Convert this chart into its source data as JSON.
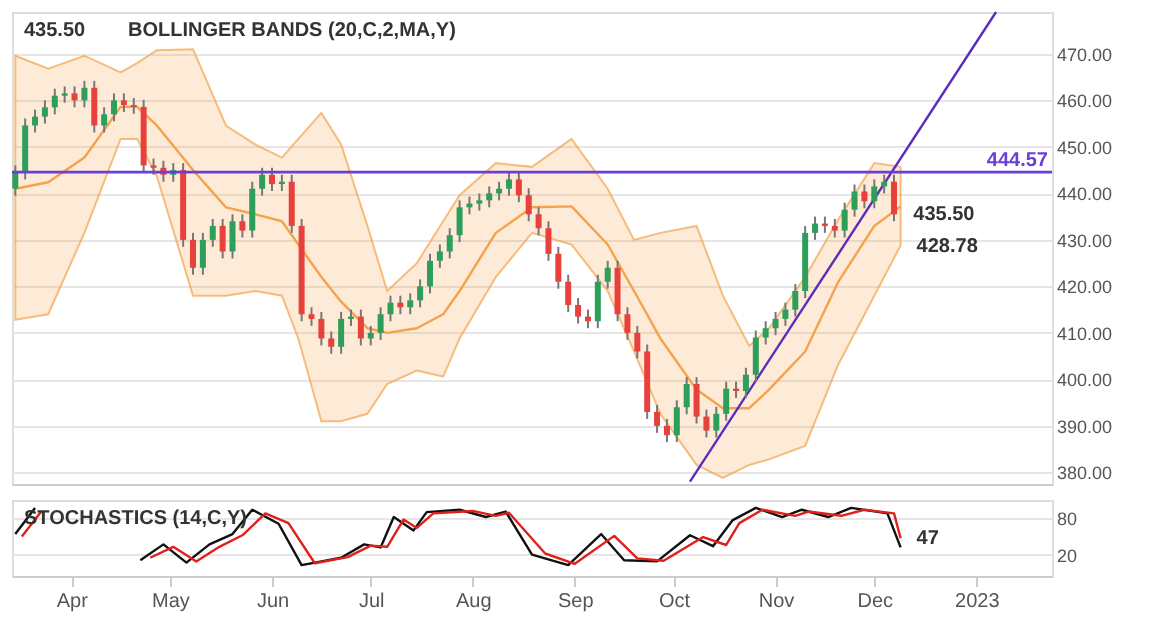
{
  "chart_data": [
    {
      "type": "candlestick",
      "annotations": [
        "435.50",
        "BOLLINGER BANDS (20,C,2,MA,Y)",
        {
          "text": "435.50",
          "x": "2022-12-08",
          "y": 435.5
        },
        {
          "text": "428.78",
          "x": "2022-12-09",
          "y": 428.78
        }
      ],
      "x": [
        "2022-03-15",
        "2022-03-18",
        "2022-03-21",
        "2022-03-24",
        "2022-03-27",
        "2022-03-30",
        "2022-04-02",
        "2022-04-05",
        "2022-04-08",
        "2022-04-11",
        "2022-04-14",
        "2022-04-17",
        "2022-04-20",
        "2022-04-23",
        "2022-04-26",
        "2022-04-29",
        "2022-05-02",
        "2022-05-05",
        "2022-05-08",
        "2022-05-11",
        "2022-05-14",
        "2022-05-17",
        "2022-05-20",
        "2022-05-23",
        "2022-05-26",
        "2022-05-29",
        "2022-06-01",
        "2022-06-04",
        "2022-06-07",
        "2022-06-10",
        "2022-06-13",
        "2022-06-16",
        "2022-06-19",
        "2022-06-22",
        "2022-06-25",
        "2022-06-28",
        "2022-07-01",
        "2022-07-04",
        "2022-07-07",
        "2022-07-10",
        "2022-07-13",
        "2022-07-16",
        "2022-07-19",
        "2022-07-22",
        "2022-07-25",
        "2022-07-28",
        "2022-07-31",
        "2022-08-03",
        "2022-08-06",
        "2022-08-09",
        "2022-08-12",
        "2022-08-15",
        "2022-08-18",
        "2022-08-21",
        "2022-08-24",
        "2022-08-27",
        "2022-08-30",
        "2022-09-02",
        "2022-09-05",
        "2022-09-08",
        "2022-09-11",
        "2022-09-14",
        "2022-09-17",
        "2022-09-20",
        "2022-09-23",
        "2022-09-26",
        "2022-09-29",
        "2022-10-02",
        "2022-10-05",
        "2022-10-08",
        "2022-10-11",
        "2022-10-14",
        "2022-10-17",
        "2022-10-20",
        "2022-10-23",
        "2022-10-26",
        "2022-10-29",
        "2022-11-01",
        "2022-11-04",
        "2022-11-07",
        "2022-11-10",
        "2022-11-13",
        "2022-11-16",
        "2022-11-19",
        "2022-11-22",
        "2022-11-25",
        "2022-11-28",
        "2022-12-01",
        "2022-12-04",
        "2022-12-07"
      ],
      "ohlc": [
        [
          441,
          446,
          439.5,
          444.5
        ],
        [
          444.5,
          456.1,
          443,
          454.6
        ],
        [
          454.6,
          458,
          453.1,
          456.5
        ],
        [
          456.5,
          460,
          455,
          458.5
        ],
        [
          458.5,
          462.5,
          457,
          461
        ],
        [
          461,
          463,
          459.5,
          461.5
        ],
        [
          461.5,
          463,
          458.5,
          460
        ],
        [
          460,
          464.2,
          458.5,
          462.7
        ],
        [
          462.7,
          464.2,
          453.1,
          454.6
        ],
        [
          454.6,
          458.5,
          453.1,
          457
        ],
        [
          457,
          461.5,
          455.5,
          460
        ],
        [
          460,
          461.5,
          457.5,
          459
        ],
        [
          459,
          460.5,
          457.1,
          458.6
        ],
        [
          458.6,
          460.1,
          444.5,
          446
        ],
        [
          446,
          447.5,
          444,
          445.5
        ],
        [
          445.5,
          447,
          442.5,
          444
        ],
        [
          444,
          446.5,
          442.5,
          445
        ],
        [
          445,
          446.5,
          428.5,
          430
        ],
        [
          430,
          431.5,
          422.5,
          424
        ],
        [
          424,
          431.5,
          422.5,
          430
        ],
        [
          430,
          434.5,
          428.5,
          433
        ],
        [
          433,
          434.5,
          426,
          427.5
        ],
        [
          427.5,
          435.5,
          426,
          434
        ],
        [
          434,
          435.5,
          430.5,
          432
        ],
        [
          432,
          442.5,
          430.5,
          441
        ],
        [
          441,
          445.5,
          439.5,
          444
        ],
        [
          444,
          445.5,
          440.5,
          442
        ],
        [
          442,
          444,
          440.5,
          442.5
        ],
        [
          442.5,
          444,
          431.5,
          433
        ],
        [
          433,
          434.5,
          412.5,
          414
        ],
        [
          414,
          415.5,
          411.5,
          413
        ],
        [
          413,
          414.5,
          407.3,
          408.8
        ],
        [
          408.8,
          410.3,
          405.5,
          407
        ],
        [
          407,
          414.5,
          405.5,
          413
        ],
        [
          413,
          415,
          411.5,
          413.5
        ],
        [
          413.5,
          415,
          407.3,
          408.8
        ],
        [
          408.8,
          411.5,
          407.3,
          410
        ],
        [
          410,
          415.5,
          408.5,
          414
        ],
        [
          414,
          418,
          412.5,
          416.5
        ],
        [
          416.5,
          418,
          414,
          415.5
        ],
        [
          415.5,
          418.5,
          414,
          417
        ],
        [
          417,
          421.5,
          415.5,
          420
        ],
        [
          420,
          427,
          418.5,
          425.5
        ],
        [
          425.5,
          429,
          424,
          427.5
        ],
        [
          427.5,
          432.5,
          426,
          431
        ],
        [
          431,
          438.5,
          429.5,
          437
        ],
        [
          437,
          439.3,
          435.5,
          437.8
        ],
        [
          437.8,
          440,
          436.3,
          438.5
        ],
        [
          438.5,
          441.5,
          437,
          440
        ],
        [
          440,
          442.5,
          438.5,
          441
        ],
        [
          441,
          444.5,
          439.5,
          443
        ],
        [
          443,
          444.5,
          438.1,
          439.6
        ],
        [
          439.6,
          441.1,
          434,
          435.5
        ],
        [
          435.5,
          437,
          431,
          432.5
        ],
        [
          432.5,
          434,
          425.5,
          427
        ],
        [
          427,
          428.5,
          419.5,
          421
        ],
        [
          421,
          422.5,
          414.5,
          416
        ],
        [
          416,
          417.5,
          412,
          413.5
        ],
        [
          413.5,
          415,
          411,
          412.5
        ],
        [
          412.5,
          422.5,
          411,
          421
        ],
        [
          421,
          425.5,
          419.5,
          424
        ],
        [
          424,
          425.5,
          412.5,
          414
        ],
        [
          414,
          415.5,
          408.5,
          410
        ],
        [
          410,
          411.5,
          404.5,
          406
        ],
        [
          406,
          407.5,
          391.5,
          393
        ],
        [
          393,
          394.5,
          388.5,
          390
        ],
        [
          390,
          391.5,
          386.5,
          388
        ],
        [
          388,
          395.5,
          386.5,
          394
        ],
        [
          394,
          400.5,
          392.5,
          399
        ],
        [
          399,
          400.5,
          390.5,
          392
        ],
        [
          392,
          393.5,
          387.5,
          389
        ],
        [
          389,
          394.1,
          387.5,
          392.6
        ],
        [
          392.6,
          399.5,
          391.1,
          398
        ],
        [
          398,
          399.5,
          396,
          397.5
        ],
        [
          397.5,
          402.5,
          396,
          401
        ],
        [
          401,
          410.5,
          399.5,
          409
        ],
        [
          409,
          412.5,
          407.5,
          411
        ],
        [
          411,
          414.5,
          409.5,
          413
        ],
        [
          413,
          416.5,
          411.5,
          415
        ],
        [
          415,
          420.5,
          413.5,
          419
        ],
        [
          419,
          433,
          417.5,
          431.5
        ],
        [
          431.5,
          435,
          430,
          433.5
        ],
        [
          433.5,
          435,
          431.5,
          433
        ],
        [
          433,
          434.5,
          430.5,
          432
        ],
        [
          432,
          438,
          430.5,
          436.5
        ],
        [
          436.5,
          441.9,
          435,
          440.4
        ],
        [
          440.4,
          441.9,
          436.8,
          438.3
        ],
        [
          438.3,
          443,
          436.8,
          441.5
        ],
        [
          441.5,
          444,
          440,
          442.5
        ],
        [
          442.5,
          444,
          434,
          435.5
        ]
      ],
      "series": [
        {
          "type": "line",
          "color": "#f4a24c",
          "x": [
            "2022-03-15",
            "2022-03-25",
            "2022-04-05",
            "2022-04-16",
            "2022-04-21",
            "2022-04-27",
            "2022-05-08",
            "2022-05-18",
            "2022-05-27",
            "2022-06-04",
            "2022-06-09",
            "2022-06-16",
            "2022-06-22",
            "2022-06-30",
            "2022-07-06",
            "2022-07-15",
            "2022-07-23",
            "2022-07-28",
            "2022-08-08",
            "2022-08-19",
            "2022-08-31",
            "2022-09-11",
            "2022-09-19",
            "2022-09-27",
            "2022-10-08",
            "2022-10-16",
            "2022-10-24",
            "2022-10-30",
            "2022-11-10",
            "2022-11-20",
            "2022-12-01",
            "2022-12-09"
          ],
          "values": [
            441,
            442.4,
            447.7,
            458.6,
            458.6,
            454.6,
            445,
            437,
            435.5,
            434,
            429,
            422,
            416.7,
            411,
            410,
            411,
            414,
            419,
            431.5,
            437,
            437.2,
            429,
            419,
            408.8,
            397.8,
            393.8,
            393.8,
            397.8,
            406,
            420.9,
            433,
            437.2
          ],
          "lower": [
            412.8,
            414,
            431.5,
            451.7,
            451.7,
            443.7,
            418,
            418,
            419,
            418,
            408.8,
            391,
            391,
            392.6,
            399,
            401.9,
            400.6,
            408.8,
            422,
            431.5,
            429,
            419,
            406,
            392.6,
            381.6,
            378.8,
            381.6,
            382.8,
            385.7,
            403.1,
            418,
            428.78
          ],
          "upper": [
            469.6,
            466.8,
            469.6,
            466,
            468,
            470.8,
            471,
            454.6,
            450.5,
            447.7,
            451.7,
            457.3,
            450.5,
            433,
            419,
            425,
            434,
            439.6,
            446.5,
            445.7,
            451.7,
            441,
            430,
            431.5,
            433,
            418,
            407.2,
            411,
            422,
            434.3,
            446.5,
            445.7
          ]
        },
        {
          "type": "line",
          "color": "#5b2dbd",
          "x": [
            "2022-10-06",
            "2023-01-07"
          ],
          "values": [
            378,
            479
          ]
        }
      ],
      "ref_lines": [
        {
          "axis": "y",
          "value": 444.57,
          "label": "444.57",
          "color": "#6a3fd8"
        }
      ],
      "xlim": [
        "2022-03-14",
        "2023-01-24"
      ],
      "ylim": [
        377.5,
        479
      ],
      "yticks": [
        {
          "value": 380,
          "label": "380.00"
        },
        {
          "value": 390,
          "label": "390.00"
        },
        {
          "value": 400,
          "label": "400.00"
        },
        {
          "value": 410,
          "label": "410.00"
        },
        {
          "value": 420,
          "label": "420.00"
        },
        {
          "value": 430,
          "label": "430.00"
        },
        {
          "value": 440,
          "label": "440.00"
        },
        {
          "value": 450,
          "label": "450.00"
        },
        {
          "value": 460,
          "label": "460.00"
        },
        {
          "value": 470,
          "label": "470.00"
        }
      ],
      "grid": "y",
      "tick_labels": "y"
    },
    {
      "type": "line",
      "annotations": [
        "STOCHASTICS (14,C,Y)",
        {
          "text": "47",
          "x": "2022-12-09",
          "y": 47
        }
      ],
      "series": [
        {
          "color": "#111111",
          "x": [
            "2022-03-15",
            "2022-03-21",
            "2022-04-10",
            "2022-04-22",
            "2022-04-29",
            "2022-05-06",
            "2022-05-13",
            "2022-05-20",
            "2022-05-26",
            "2022-06-03",
            "2022-06-10",
            "2022-06-22",
            "2022-06-29",
            "2022-07-04",
            "2022-07-08",
            "2022-07-14",
            "2022-07-18",
            "2022-07-28",
            "2022-08-05",
            "2022-08-11",
            "2022-08-19",
            "2022-08-30",
            "2022-09-09",
            "2022-09-16",
            "2022-09-26",
            "2022-10-06",
            "2022-10-13",
            "2022-10-19",
            "2022-10-26",
            "2022-11-03",
            "2022-11-09",
            "2022-11-17",
            "2022-11-24",
            "2022-12-05",
            "2022-12-09"
          ],
          "values": [
            54,
            97,
            null,
            11,
            37,
            7,
            37,
            54,
            94,
            71,
            3,
            15,
            37,
            32,
            82,
            60,
            90,
            94,
            82,
            91,
            20,
            3,
            54,
            11,
            9,
            52,
            34,
            77,
            97,
            82,
            94,
            82,
            97,
            88,
            32
          ]
        },
        {
          "color": "#e0201b",
          "x": [
            "2022-03-17",
            "2022-03-23",
            "2022-04-10",
            "2022-04-25",
            "2022-05-02",
            "2022-05-09",
            "2022-05-16",
            "2022-05-23",
            "2022-05-30",
            "2022-06-06",
            "2022-06-14",
            "2022-06-24",
            "2022-07-01",
            "2022-07-06",
            "2022-07-11",
            "2022-07-15",
            "2022-07-20",
            "2022-08-01",
            "2022-08-08",
            "2022-08-12",
            "2022-08-23",
            "2022-09-01",
            "2022-09-13",
            "2022-09-20",
            "2022-09-28",
            "2022-10-10",
            "2022-10-17",
            "2022-10-21",
            "2022-10-28",
            "2022-11-07",
            "2022-11-11",
            "2022-11-21",
            "2022-11-28",
            "2022-12-07",
            "2022-12-09"
          ],
          "values": [
            50,
            92,
            null,
            15,
            33,
            9,
            33,
            52,
            88,
            72,
            6,
            16,
            35,
            33,
            78,
            64,
            88,
            92,
            84,
            89,
            22,
            5,
            51,
            14,
            10,
            49,
            36,
            72,
            94,
            84,
            91,
            84,
            94,
            88,
            47
          ]
        }
      ],
      "xlim": [
        "2022-03-14",
        "2023-01-24"
      ],
      "ylim": [
        -15,
        110
      ],
      "yticks": [
        20,
        80
      ],
      "xticks": [
        {
          "value": "2022-04-01",
          "label": "Apr"
        },
        {
          "value": "2022-05-01",
          "label": "May"
        },
        {
          "value": "2022-06-01",
          "label": "Jun"
        },
        {
          "value": "2022-07-01",
          "label": "Jul"
        },
        {
          "value": "2022-08-01",
          "label": "Aug"
        },
        {
          "value": "2022-09-01",
          "label": "Sep"
        },
        {
          "value": "2022-10-01",
          "label": "Oct"
        },
        {
          "value": "2022-11-01",
          "label": "Nov"
        },
        {
          "value": "2022-12-01",
          "label": "Dec"
        },
        {
          "value": "2023-01-01",
          "label": "2023"
        }
      ],
      "grid": "y"
    }
  ]
}
